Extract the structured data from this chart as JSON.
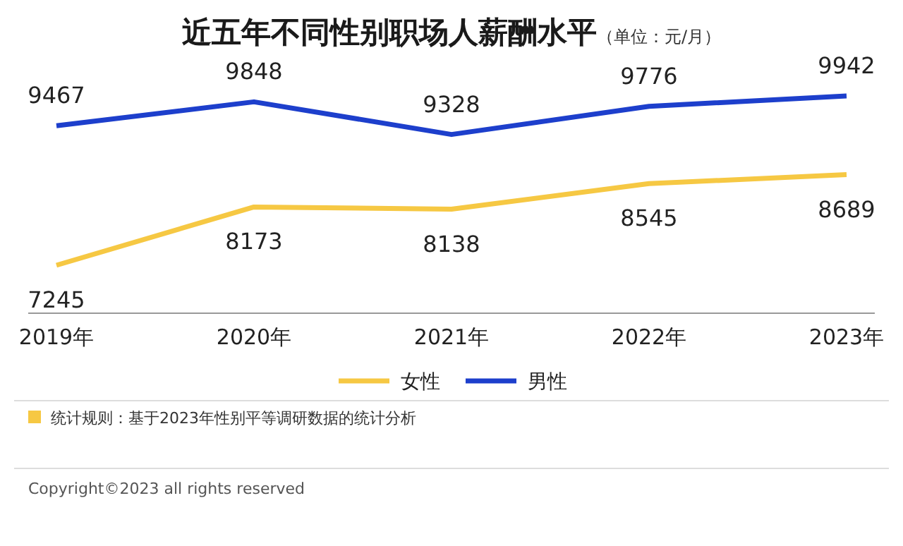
{
  "chart_data": {
    "type": "line",
    "title": "近五年不同性别职场人薪酬水平",
    "subtitle": "（单位：元/月）",
    "categories": [
      "2019年",
      "2020年",
      "2021年",
      "2022年",
      "2023年"
    ],
    "series": [
      {
        "name": "女性",
        "color": "#f6c843",
        "values": [
          7245,
          8173,
          8138,
          8545,
          8689
        ]
      },
      {
        "name": "男性",
        "color": "#1d3fcc",
        "values": [
          9467,
          9848,
          9328,
          9776,
          9942
        ]
      }
    ],
    "data_labels": true,
    "legend": "bottom",
    "grid": false,
    "marker": "none",
    "line_style": "solid",
    "annotations": [
      "统计规则：基于2023年性别平等调研数据的统计分析",
      "Copyright©2023 all rights reserved"
    ]
  }
}
